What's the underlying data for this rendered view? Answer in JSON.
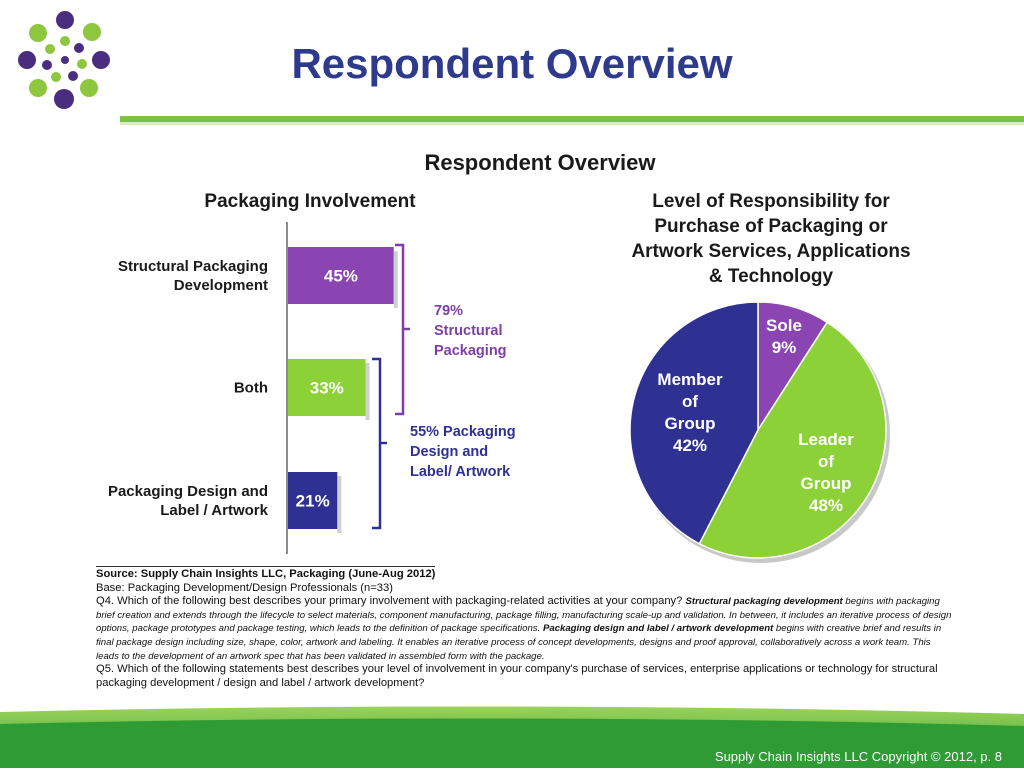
{
  "slide": {
    "title": "Respondent Overview",
    "figure_title": "Respondent Overview",
    "footer": "Supply Chain Insights LLC Copyright © 2012, p. 8"
  },
  "colors": {
    "title": "#2e3a8c",
    "accent_green": "#7dc242",
    "purple": "#8b45b3",
    "green": "#8dd138",
    "navy": "#2e3192",
    "bracket_purple": "#7d3fa5",
    "bracket_navy": "#2e3192"
  },
  "chart_data": [
    {
      "type": "bar",
      "title": "Packaging Involvement",
      "categories": [
        "Structural Packaging Development",
        "Both",
        "Packaging Design and Label / Artwork"
      ],
      "category_lines": [
        [
          "Structural Packaging",
          "Development"
        ],
        [
          "Both"
        ],
        [
          "Packaging Design and",
          "Label / Artwork"
        ]
      ],
      "values": [
        45,
        33,
        21
      ],
      "value_labels": [
        "45%",
        "33%",
        "21%"
      ],
      "colors": [
        "#8b45b3",
        "#8dd138",
        "#2e3192"
      ],
      "unit": "%",
      "brackets": [
        {
          "lines": [
            "79%",
            "Structural",
            "Packaging"
          ],
          "color": "#7d3fa5",
          "spans": [
            "Structural Packaging Development",
            "Both"
          ]
        },
        {
          "lines": [
            "55% Packaging",
            "Design and",
            "Label/ Artwork"
          ],
          "color": "#2e3192",
          "spans": [
            "Both",
            "Packaging Design and Label / Artwork"
          ]
        }
      ]
    },
    {
      "type": "pie",
      "title": "Level of Responsibility for Purchase of Packaging or Artwork Services, Applications & Technology",
      "title_lines": [
        "Level of Responsibility for",
        "Purchase of Packaging or",
        "Artwork Services, Applications",
        "& Technology"
      ],
      "slices": [
        {
          "label": "Sole",
          "value": 9,
          "value_label": "9%",
          "color": "#8b45b3"
        },
        {
          "label": "Leader of Group",
          "value": 48,
          "value_label": "48%",
          "color": "#8dd138"
        },
        {
          "label": "Member of Group",
          "value": 42,
          "value_label": "42%",
          "color": "#2e3192"
        }
      ]
    }
  ],
  "source": {
    "head": "Source:  Supply Chain Insights LLC, Packaging (June-Aug 2012)",
    "base": "Base:  Packaging Development/Design Professionals (n=33)",
    "q4_question": "Q4. Which of the following best describes your primary involvement with packaging-related activities at your company? ",
    "q4_term1": "Structural packaging  development",
    "q4_def1": " begins with packaging brief creation and extends through the lifecycle to select materials, component manufacturing, package filling, manufacturing scale-up and validation.  In between, it includes an iterative process of design options, package prototypes and package testing, which leads to the definition of package  specifications. ",
    "q4_term2": "Packaging design  and label  / artwork development",
    "q4_def2": "  begins with creative brief and results in final package design including size, shape, color, artwork and labeling.  It enables an iterative process of concept developments, designs and proof approval, collaboratively across a work team.  This leads to the development  of an artwork spec that has been validated in assembled form with the package.",
    "q5": "Q5. Which of the following statements best describes your level of involvement in your company's purchase of services, enterprise applications or technology for structural packaging development / design and label / artwork development?"
  }
}
